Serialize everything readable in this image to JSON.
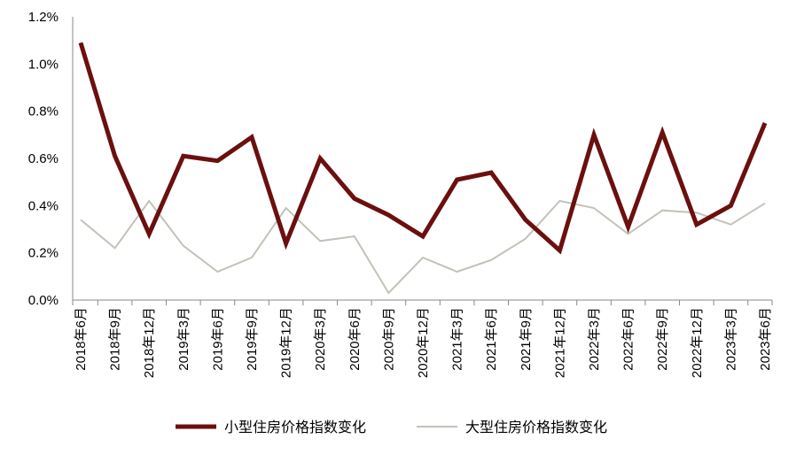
{
  "chart_data": {
    "type": "line",
    "categories": [
      "2018年6月",
      "2018年9月",
      "2018年12月",
      "2019年3月",
      "2019年6月",
      "2019年9月",
      "2019年12月",
      "2020年3月",
      "2020年6月",
      "2020年9月",
      "2020年12月",
      "2021年3月",
      "2021年6月",
      "2021年9月",
      "2021年12月",
      "2022年3月",
      "2022年6月",
      "2022年9月",
      "2022年12月",
      "2023年3月",
      "2023年6月"
    ],
    "series": [
      {
        "name": "小型住房价格指数变化",
        "color": "#6b0f0f",
        "values": [
          1.09,
          0.61,
          0.28,
          0.61,
          0.59,
          0.69,
          0.24,
          0.6,
          0.43,
          0.36,
          0.27,
          0.51,
          0.54,
          0.34,
          0.21,
          0.7,
          0.31,
          0.71,
          0.32,
          0.4,
          0.75
        ]
      },
      {
        "name": "大型住房价格指数变化",
        "color": "#c2c2b8",
        "values": [
          0.34,
          0.22,
          0.42,
          0.23,
          0.12,
          0.18,
          0.39,
          0.25,
          0.27,
          0.03,
          0.18,
          0.12,
          0.17,
          0.26,
          0.42,
          0.39,
          0.28,
          0.38,
          0.37,
          0.32,
          0.41
        ]
      }
    ],
    "y_ticks": [
      "0.0%",
      "0.2%",
      "0.4%",
      "0.6%",
      "0.8%",
      "1.0%",
      "1.2%"
    ],
    "ylim": [
      0,
      1.2
    ],
    "title": "",
    "xlabel": "",
    "ylabel": "",
    "grid": false,
    "legend_position": "bottom"
  }
}
